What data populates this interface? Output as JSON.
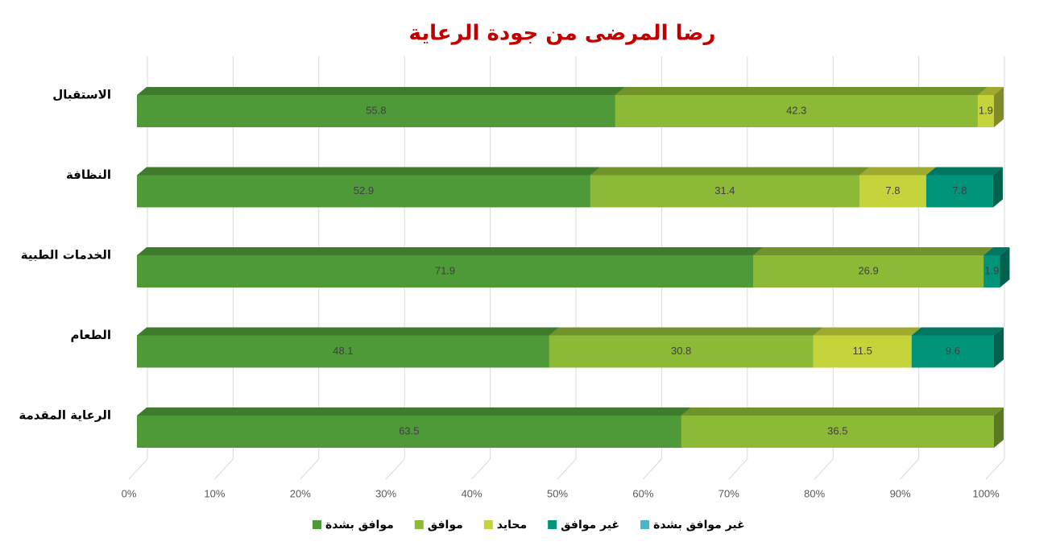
{
  "chart_data": {
    "type": "bar3d_stacked_percent",
    "title": "رضا المرضى من جودة الرعاية",
    "categories": [
      "الاستقبال",
      "النظافة",
      "الخدمات الطبية",
      "الطعام",
      "الرعاية المقدمة"
    ],
    "series": [
      {
        "name": "موافق بشدة",
        "color": "#4e9a38",
        "values": [
          55.8,
          52.9,
          71.9,
          48.1,
          63.5
        ]
      },
      {
        "name": "موافق",
        "color": "#8cb936",
        "values": [
          42.3,
          31.4,
          26.9,
          30.8,
          36.5
        ]
      },
      {
        "name": "محايد",
        "color": "#c6d43c",
        "values": [
          1.9,
          7.8,
          null,
          11.5,
          null
        ]
      },
      {
        "name": "غير موافق",
        "color": "#00957a",
        "values": [
          null,
          7.8,
          1.9,
          9.6,
          null
        ]
      },
      {
        "name": "غير موافق بشدة",
        "color": "#4bb5c8",
        "values": [
          null,
          null,
          null,
          null,
          null
        ]
      }
    ],
    "xlim": [
      0,
      100
    ],
    "xticks": [
      {
        "value": 0,
        "label": "0%"
      },
      {
        "value": 10,
        "label": "10%"
      },
      {
        "value": 20,
        "label": "20%"
      },
      {
        "value": 30,
        "label": "30%"
      },
      {
        "value": 40,
        "label": "40%"
      },
      {
        "value": 50,
        "label": "50%"
      },
      {
        "value": 60,
        "label": "60%"
      },
      {
        "value": 70,
        "label": "70%"
      },
      {
        "value": 80,
        "label": "80%"
      },
      {
        "value": 90,
        "label": "90%"
      },
      {
        "value": 100,
        "label": "100%"
      }
    ],
    "grid": true,
    "legend": "bottom"
  }
}
